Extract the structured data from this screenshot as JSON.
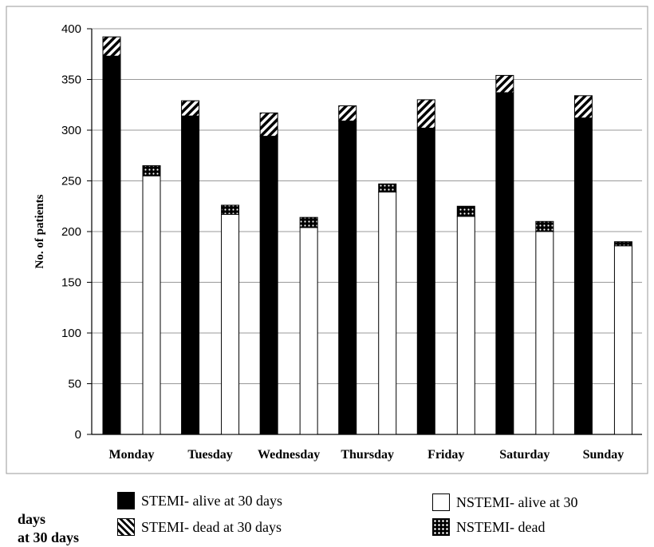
{
  "chart_data": {
    "type": "bar",
    "stacked": true,
    "categories": [
      "Monday",
      "Tuesday",
      "Wednesday",
      "Thursday",
      "Friday",
      "Saturday",
      "Sunday"
    ],
    "series": [
      {
        "name": "STEMI- alive at 30 days",
        "group": "STEMI",
        "values": [
          373,
          314,
          294,
          309,
          302,
          337,
          312
        ]
      },
      {
        "name": "STEMI- dead at 30 days",
        "group": "STEMI",
        "values": [
          19,
          15,
          23,
          15,
          28,
          17,
          22
        ]
      },
      {
        "name": "NSTEMI- alive at 30",
        "group": "NSTEMI",
        "values": [
          255,
          217,
          204,
          239,
          215,
          200,
          186
        ]
      },
      {
        "name": "NSTEMI- dead",
        "group": "NSTEMI",
        "values": [
          10,
          9,
          10,
          8,
          10,
          10,
          4
        ]
      }
    ],
    "ylabel": "No. of patients",
    "xlabel": "",
    "ylim": [
      0,
      400
    ],
    "yticks": [
      0,
      50,
      100,
      150,
      200,
      250,
      300,
      350,
      400
    ],
    "grid": true,
    "legend_position": "bottom",
    "legend_extra_lines": [
      "days",
      "at 30 days"
    ],
    "colors": {
      "stemi_alive": "#000000",
      "nstemi_alive": "#ffffff",
      "border": "#000000",
      "grid": "#999999"
    }
  }
}
